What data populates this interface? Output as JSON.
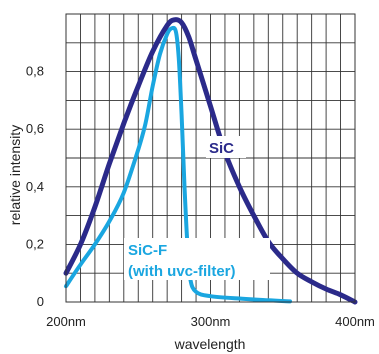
{
  "chart_data": {
    "type": "line",
    "title": "",
    "xlabel": "wavelength",
    "ylabel": "relative intensity",
    "xlim": [
      200,
      400
    ],
    "ylim": [
      0,
      1.0
    ],
    "grid": true,
    "x_ticks": [
      {
        "value": 200,
        "label": "200nm"
      },
      {
        "value": 300,
        "label": "300nm"
      },
      {
        "value": 400,
        "label": "400nm"
      }
    ],
    "y_ticks": [
      {
        "value": 0,
        "label": "0"
      },
      {
        "value": 0.2,
        "label": "0,2"
      },
      {
        "value": 0.4,
        "label": "0,4"
      },
      {
        "value": 0.6,
        "label": "0,6"
      },
      {
        "value": 0.8,
        "label": "0,8"
      }
    ],
    "series": [
      {
        "name": "SiC",
        "color": "#2b2a8a",
        "points": [
          [
            200,
            0.1
          ],
          [
            210,
            0.2
          ],
          [
            220,
            0.33
          ],
          [
            230,
            0.48
          ],
          [
            240,
            0.62
          ],
          [
            250,
            0.75
          ],
          [
            260,
            0.87
          ],
          [
            270,
            0.96
          ],
          [
            275,
            0.98
          ],
          [
            280,
            0.97
          ],
          [
            285,
            0.92
          ],
          [
            290,
            0.84
          ],
          [
            300,
            0.68
          ],
          [
            310,
            0.52
          ],
          [
            320,
            0.4
          ],
          [
            330,
            0.3
          ],
          [
            340,
            0.21
          ],
          [
            350,
            0.15
          ],
          [
            360,
            0.1
          ],
          [
            370,
            0.07
          ],
          [
            380,
            0.045
          ],
          [
            390,
            0.025
          ],
          [
            400,
            0.0
          ]
        ]
      },
      {
        "name": "SiC-F\n(with uvc-filter)",
        "color": "#1aa6e0",
        "points": [
          [
            200,
            0.055
          ],
          [
            210,
            0.13
          ],
          [
            220,
            0.2
          ],
          [
            230,
            0.28
          ],
          [
            240,
            0.38
          ],
          [
            250,
            0.53
          ],
          [
            255,
            0.62
          ],
          [
            260,
            0.75
          ],
          [
            265,
            0.86
          ],
          [
            270,
            0.93
          ],
          [
            273,
            0.95
          ],
          [
            276,
            0.94
          ],
          [
            278,
            0.85
          ],
          [
            280,
            0.65
          ],
          [
            282,
            0.4
          ],
          [
            284,
            0.2
          ],
          [
            286,
            0.08
          ],
          [
            290,
            0.035
          ],
          [
            300,
            0.02
          ],
          [
            320,
            0.012
          ],
          [
            340,
            0.006
          ],
          [
            355,
            0.002
          ]
        ]
      }
    ]
  },
  "labels": {
    "sic": "SiC",
    "sicf_line1": "SiC-F",
    "sicf_line2": "(with uvc-filter)"
  }
}
